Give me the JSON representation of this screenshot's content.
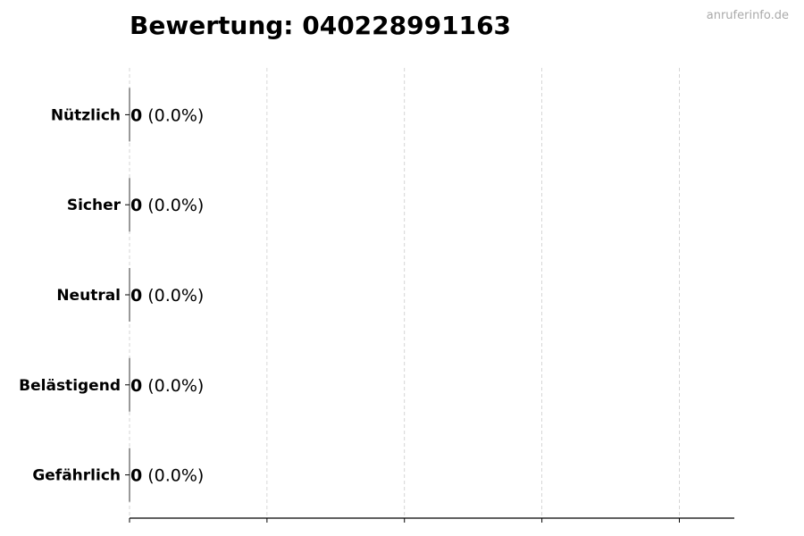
{
  "title": "Bewertung: 040228991163",
  "watermark": "anruferinfo.de",
  "chart_data": {
    "type": "bar",
    "orientation": "horizontal",
    "title": "Bewertung: 040228991163",
    "categories": [
      "Nützlich",
      "Sicher",
      "Neutral",
      "Belästigend",
      "Gefährlich"
    ],
    "values": [
      0,
      0,
      0,
      0,
      0
    ],
    "data_labels": [
      "0",
      "0",
      "0",
      "0",
      "0"
    ],
    "percent_labels": [
      "(0.0%)",
      "(0.0%)",
      "(0.0%)",
      "(0.0%)",
      "(0.0%)"
    ],
    "xlabel": "",
    "ylabel": "",
    "xlim": [
      0,
      4.4
    ],
    "x_ticks": [
      0,
      1,
      2,
      3,
      4
    ],
    "x_tick_labels_shown": false,
    "grid": "vertical dashed",
    "colors": {
      "grid": "#cccccc",
      "axis": "#000000",
      "text": "#000000"
    }
  }
}
